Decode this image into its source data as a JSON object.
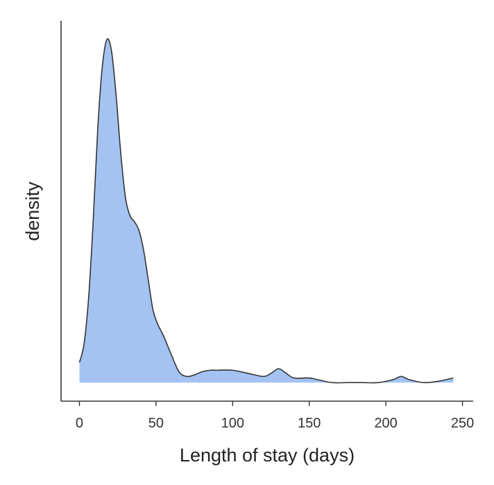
{
  "chart_data": {
    "type": "area",
    "title": "",
    "xlabel": "Length of stay (days)",
    "ylabel": "density",
    "xlim": [
      -12,
      257
    ],
    "ylim": [
      -0.0012,
      0.0234
    ],
    "x_ticks": [
      0,
      50,
      100,
      150,
      200,
      250
    ],
    "x_tick_labels": [
      "0",
      "50",
      "100",
      "150",
      "200",
      "250"
    ],
    "y_ticks_visible": false,
    "grid": false,
    "legend": "none",
    "fill_color": "#A4C3F2",
    "line_color": "#333333",
    "series": [
      {
        "x": [
          0,
          3,
          6,
          9,
          12,
          15,
          18,
          21,
          24,
          27,
          30,
          33,
          36,
          39,
          42,
          45,
          48,
          51,
          55,
          60,
          65,
          70,
          75,
          80,
          85,
          90,
          100,
          110,
          120,
          125,
          130,
          135,
          140,
          150,
          155,
          165,
          175,
          185,
          195,
          205,
          210,
          215,
          225,
          235,
          244
        ],
        "y": [
          0.0013,
          0.0025,
          0.0055,
          0.0105,
          0.0165,
          0.0205,
          0.0222,
          0.0214,
          0.0185,
          0.0148,
          0.012,
          0.0108,
          0.0104,
          0.0098,
          0.0085,
          0.0066,
          0.0047,
          0.0038,
          0.003,
          0.0018,
          0.0007,
          0.0004,
          0.0005,
          0.0007,
          0.0008,
          0.0008,
          0.0008,
          0.0006,
          0.0004,
          0.0006,
          0.0009,
          0.0006,
          0.0003,
          0.0003,
          0.0002,
          0.0,
          0.0,
          0.0,
          0.0,
          0.0002,
          0.0004,
          0.0002,
          0.0,
          0.0001,
          0.0003
        ]
      }
    ]
  }
}
